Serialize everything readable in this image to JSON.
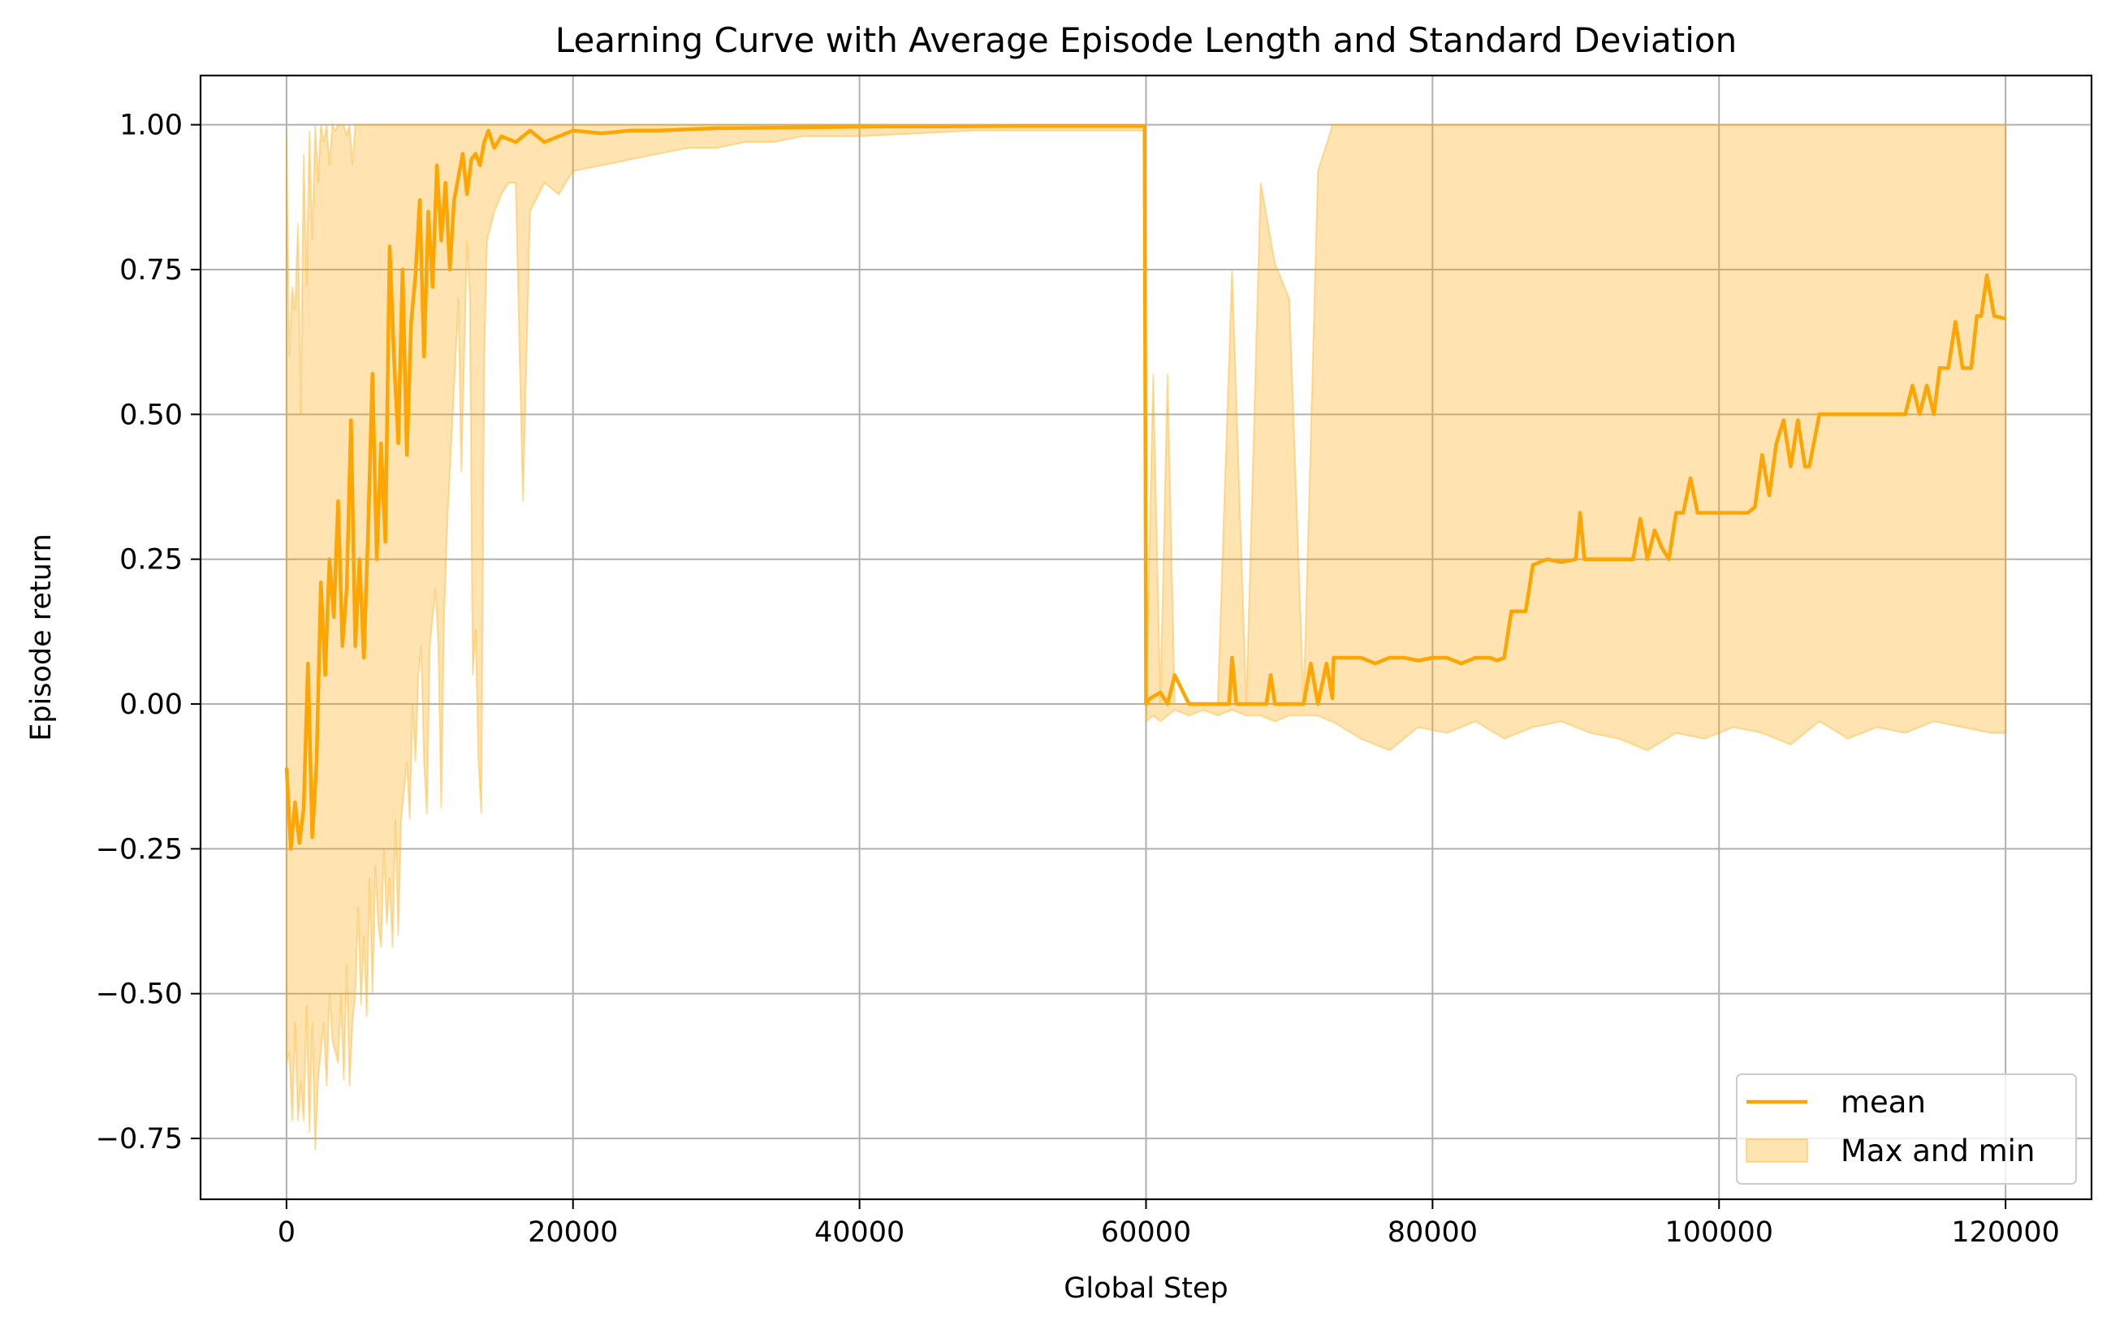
{
  "chart_data": {
    "type": "line",
    "title": "Learning Curve with Average Episode Length and Standard Deviation",
    "xlabel": "Global Step",
    "ylabel": "Episode return",
    "xlim": [
      -6000,
      126000
    ],
    "ylim": [
      -0.855,
      1.085
    ],
    "x_ticks": [
      0,
      20000,
      40000,
      60000,
      80000,
      100000,
      120000
    ],
    "x_tick_labels": [
      "0",
      "20000",
      "40000",
      "60000",
      "80000",
      "100000",
      "120000"
    ],
    "y_ticks": [
      -0.75,
      -0.5,
      -0.25,
      0.0,
      0.25,
      0.5,
      0.75,
      1.0
    ],
    "y_tick_labels": [
      "−0.75",
      "−0.50",
      "−0.25",
      "0.00",
      "0.25",
      "0.50",
      "0.75",
      "1.00"
    ],
    "grid": true,
    "legend_position": "lower-right",
    "colors": {
      "mean": "#ffa500",
      "band": "#ffa500"
    },
    "series": [
      {
        "name": "mean",
        "kind": "line",
        "x": [
          0,
          300,
          600,
          900,
          1200,
          1500,
          1800,
          2100,
          2400,
          2700,
          3000,
          3300,
          3600,
          3900,
          4200,
          4500,
          4800,
          5100,
          5400,
          5700,
          6000,
          6300,
          6600,
          6900,
          7200,
          7500,
          7800,
          8100,
          8400,
          8700,
          9000,
          9300,
          9600,
          9900,
          10200,
          10500,
          10800,
          11100,
          11400,
          11700,
          12000,
          12300,
          12600,
          12900,
          13200,
          13500,
          13800,
          14100,
          14500,
          15000,
          16000,
          17000,
          18000,
          19000,
          20000,
          22000,
          24000,
          26000,
          28000,
          30000,
          34000,
          38000,
          42000,
          46000,
          50000,
          54000,
          58000,
          59900,
          60000,
          60300,
          61000,
          61500,
          62000,
          63000,
          65000,
          65800,
          66000,
          66300,
          67000,
          68000,
          68400,
          68700,
          69000,
          70000,
          71000,
          71500,
          72000,
          72600,
          73000,
          73100,
          74000,
          75000,
          76000,
          77000,
          78000,
          79000,
          80000,
          81000,
          82000,
          83000,
          84000,
          84500,
          85000,
          85500,
          86000,
          86500,
          87000,
          88000,
          89000,
          90000,
          90300,
          90600,
          91000,
          92000,
          93000,
          94000,
          94500,
          95000,
          95500,
          96000,
          96500,
          97000,
          97500,
          98000,
          98500,
          99000,
          100000,
          101000,
          102000,
          102500,
          103000,
          103500,
          104000,
          104500,
          105000,
          105500,
          106000,
          106300,
          107000,
          108000,
          109000,
          110000,
          111000,
          112000,
          113000,
          113500,
          114000,
          114500,
          115000,
          115400,
          115700,
          116000,
          116500,
          117000,
          117600,
          118000,
          118300,
          118700,
          119200,
          120000
        ],
        "y": [
          -0.11,
          -0.25,
          -0.17,
          -0.24,
          -0.18,
          0.07,
          -0.23,
          -0.1,
          0.21,
          0.05,
          0.25,
          0.15,
          0.35,
          0.1,
          0.2,
          0.49,
          0.1,
          0.25,
          0.08,
          0.3,
          0.57,
          0.25,
          0.45,
          0.28,
          0.79,
          0.6,
          0.45,
          0.75,
          0.43,
          0.66,
          0.74,
          0.87,
          0.6,
          0.85,
          0.72,
          0.93,
          0.8,
          0.9,
          0.75,
          0.87,
          0.91,
          0.95,
          0.88,
          0.94,
          0.95,
          0.93,
          0.97,
          0.99,
          0.96,
          0.98,
          0.97,
          0.99,
          0.97,
          0.98,
          0.99,
          0.985,
          0.99,
          0.99,
          0.992,
          0.994,
          0.995,
          0.996,
          0.997,
          0.997,
          0.998,
          0.998,
          0.998,
          0.998,
          0.0,
          0.01,
          0.02,
          0.0,
          0.05,
          0.0,
          0.0,
          0.0,
          0.08,
          0.0,
          0.0,
          0.0,
          0.0,
          0.05,
          0.0,
          0.0,
          0.0,
          0.07,
          0.0,
          0.07,
          0.01,
          0.08,
          0.08,
          0.08,
          0.07,
          0.08,
          0.08,
          0.075,
          0.08,
          0.08,
          0.07,
          0.08,
          0.08,
          0.075,
          0.08,
          0.16,
          0.16,
          0.16,
          0.24,
          0.25,
          0.245,
          0.25,
          0.33,
          0.25,
          0.25,
          0.25,
          0.25,
          0.25,
          0.32,
          0.25,
          0.3,
          0.27,
          0.25,
          0.33,
          0.33,
          0.39,
          0.33,
          0.33,
          0.33,
          0.33,
          0.33,
          0.34,
          0.43,
          0.36,
          0.45,
          0.49,
          0.41,
          0.49,
          0.41,
          0.41,
          0.5,
          0.5,
          0.5,
          0.5,
          0.5,
          0.5,
          0.5,
          0.55,
          0.5,
          0.55,
          0.5,
          0.58,
          0.58,
          0.58,
          0.66,
          0.58,
          0.58,
          0.67,
          0.67,
          0.74,
          0.67,
          0.665
        ]
      },
      {
        "name": "Max and min",
        "kind": "band",
        "x": [
          0,
          200,
          400,
          600,
          800,
          1000,
          1200,
          1400,
          1600,
          1800,
          2000,
          2200,
          2400,
          2600,
          2800,
          3000,
          3200,
          3400,
          3600,
          3800,
          4000,
          4200,
          4400,
          4600,
          4800,
          5000,
          5200,
          5400,
          5600,
          5800,
          6000,
          6200,
          6400,
          6600,
          6800,
          7000,
          7200,
          7400,
          7600,
          7800,
          8000,
          8200,
          8400,
          8600,
          8800,
          9000,
          9200,
          9400,
          9600,
          9800,
          10000,
          10200,
          10400,
          10600,
          10800,
          11000,
          11200,
          11400,
          11600,
          11800,
          12000,
          12200,
          12400,
          12600,
          12800,
          13000,
          13200,
          13400,
          13600,
          13800,
          14000,
          14500,
          15000,
          15500,
          16000,
          16500,
          17000,
          18000,
          19000,
          20000,
          22000,
          24000,
          26000,
          28000,
          30000,
          32000,
          34000,
          36000,
          38000,
          40000,
          44000,
          48000,
          52000,
          56000,
          59900,
          60000,
          60500,
          61000,
          61500,
          62000,
          63000,
          64000,
          65000,
          66000,
          67000,
          68000,
          69000,
          70000,
          71000,
          72000,
          72900,
          73000,
          75000,
          77000,
          79000,
          81000,
          83000,
          85000,
          87000,
          89000,
          91000,
          93000,
          95000,
          97000,
          99000,
          101000,
          103000,
          105000,
          107000,
          109000,
          111000,
          113000,
          115000,
          117000,
          119000,
          120000
        ],
        "upper": [
          0.98,
          0.6,
          0.72,
          0.68,
          0.83,
          0.5,
          0.95,
          0.72,
          0.99,
          0.8,
          1.0,
          0.9,
          1.0,
          0.97,
          1.0,
          0.93,
          1.0,
          0.99,
          1.0,
          1.0,
          1.0,
          0.98,
          1.0,
          0.93,
          1.0,
          1.0,
          1.0,
          1.0,
          1.0,
          1.0,
          1.0,
          1.0,
          1.0,
          1.0,
          1.0,
          1.0,
          1.0,
          1.0,
          1.0,
          1.0,
          1.0,
          1.0,
          1.0,
          1.0,
          1.0,
          1.0,
          1.0,
          1.0,
          1.0,
          1.0,
          1.0,
          1.0,
          1.0,
          1.0,
          1.0,
          1.0,
          1.0,
          1.0,
          1.0,
          1.0,
          1.0,
          1.0,
          1.0,
          1.0,
          1.0,
          1.0,
          1.0,
          1.0,
          1.0,
          1.0,
          1.0,
          1.0,
          1.0,
          1.0,
          1.0,
          1.0,
          1.0,
          1.0,
          1.0,
          1.0,
          1.0,
          1.0,
          1.0,
          1.0,
          1.0,
          1.0,
          1.0,
          1.0,
          1.0,
          1.0,
          1.0,
          1.0,
          1.0,
          1.0,
          1.0,
          0.0,
          0.57,
          0.0,
          0.57,
          0.0,
          0.0,
          0.0,
          0.0,
          0.75,
          0.0,
          0.9,
          0.76,
          0.7,
          0.0,
          0.92,
          0.99,
          1.0,
          1.0,
          1.0,
          1.0,
          1.0,
          1.0,
          1.0,
          1.0,
          1.0,
          1.0,
          1.0,
          1.0,
          1.0,
          1.0,
          1.0,
          1.0,
          1.0,
          1.0,
          1.0,
          1.0,
          1.0,
          1.0,
          1.0,
          1.0,
          1.0
        ],
        "lower": [
          -0.62,
          -0.6,
          -0.72,
          -0.55,
          -0.72,
          -0.65,
          -0.72,
          -0.52,
          -0.74,
          -0.55,
          -0.77,
          -0.65,
          -0.6,
          -0.55,
          -0.66,
          -0.5,
          -0.58,
          -0.6,
          -0.62,
          -0.5,
          -0.65,
          -0.45,
          -0.66,
          -0.55,
          -0.5,
          -0.35,
          -0.52,
          -0.4,
          -0.54,
          -0.3,
          -0.5,
          -0.28,
          -0.38,
          -0.42,
          -0.25,
          -0.38,
          -0.3,
          -0.42,
          -0.2,
          -0.4,
          -0.2,
          -0.15,
          -0.1,
          -0.2,
          0.0,
          -0.1,
          0.05,
          0.1,
          -0.1,
          -0.19,
          0.1,
          0.15,
          0.2,
          0.1,
          -0.18,
          0.15,
          0.3,
          0.4,
          0.5,
          0.6,
          0.7,
          0.4,
          0.6,
          0.8,
          0.7,
          0.05,
          0.13,
          -0.1,
          -0.19,
          0.6,
          0.8,
          0.85,
          0.88,
          0.9,
          0.9,
          0.35,
          0.85,
          0.9,
          0.88,
          0.92,
          0.93,
          0.94,
          0.95,
          0.96,
          0.96,
          0.97,
          0.97,
          0.98,
          0.98,
          0.98,
          0.985,
          0.99,
          0.99,
          0.99,
          0.99,
          -0.03,
          -0.02,
          -0.03,
          -0.02,
          -0.01,
          -0.02,
          -0.01,
          -0.02,
          -0.01,
          -0.02,
          -0.02,
          -0.03,
          -0.02,
          -0.02,
          -0.02,
          -0.03,
          -0.03,
          -0.06,
          -0.08,
          -0.04,
          -0.05,
          -0.03,
          -0.06,
          -0.04,
          -0.03,
          -0.05,
          -0.06,
          -0.08,
          -0.05,
          -0.06,
          -0.04,
          -0.05,
          -0.07,
          -0.03,
          -0.06,
          -0.04,
          -0.05,
          -0.03,
          -0.04,
          -0.05,
          -0.05
        ]
      }
    ],
    "legend": [
      {
        "label": "mean",
        "kind": "line"
      },
      {
        "label": "Max and min",
        "kind": "patch"
      }
    ]
  }
}
